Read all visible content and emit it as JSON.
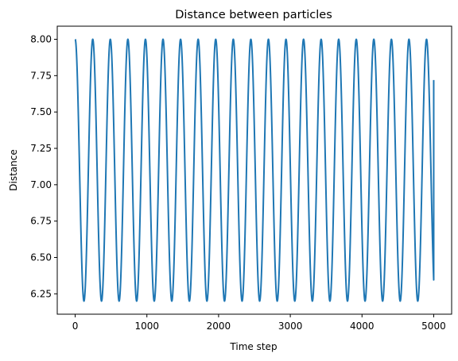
{
  "chart_data": {
    "type": "line",
    "title": "Distance between particles",
    "xlabel": "Time step",
    "ylabel": "Distance",
    "xlim": [
      -250,
      5250
    ],
    "ylim": [
      6.11,
      8.09
    ],
    "xticks": [
      0,
      1000,
      2000,
      3000,
      4000,
      5000
    ],
    "yticks": [
      6.25,
      6.5,
      6.75,
      7.0,
      7.25,
      7.5,
      7.75,
      8.0
    ],
    "ytick_labels": [
      "6.25",
      "6.50",
      "6.75",
      "7.00",
      "7.25",
      "7.50",
      "7.75",
      "8.00"
    ],
    "grid": false,
    "legend": "none",
    "series_color": "#1f77b4",
    "series": [
      {
        "x_start": 0,
        "x_end": 5000,
        "y_max": 8.0,
        "y_min": 6.2,
        "period": 245,
        "end_value": 7.72
      }
    ]
  }
}
